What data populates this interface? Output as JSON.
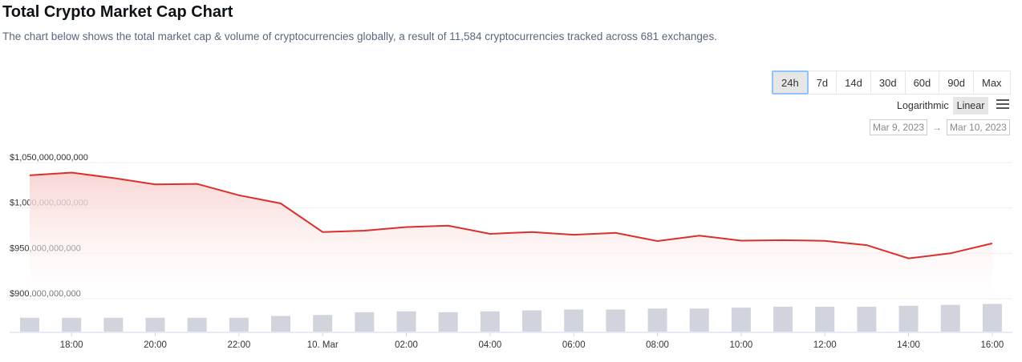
{
  "header": {
    "title": "Total Crypto Market Cap Chart",
    "description": "The chart below shows the total market cap & volume of cryptocurrencies globally, a result of 11,584 cryptocurrencies tracked across 681 exchanges."
  },
  "ranges": [
    "24h",
    "7d",
    "14d",
    "30d",
    "60d",
    "90d",
    "Max"
  ],
  "selected_range": "24h",
  "scale": {
    "log_label": "Logarithmic",
    "linear_label": "Linear",
    "selected": "Linear"
  },
  "date_range": {
    "from": "Mar 9, 2023",
    "arrow": "→",
    "to": "Mar 10, 2023"
  },
  "icons": {
    "menu": "hamburger-menu-icon"
  },
  "colors": {
    "line": "#d9302c",
    "area_top": "#f8d3d1",
    "volume_bar": "#d1d4dc"
  },
  "chart_data": {
    "type": "area",
    "ylim": [
      900000000000,
      1050000000000
    ],
    "yticks": [
      1050000000000,
      1000000000000,
      950000000000,
      900000000000
    ],
    "ytick_labels": [
      "$1,050,000,000,000",
      "$1,000,000,000,000",
      "$950,000,000,000",
      "$900,000,000,000"
    ],
    "x_labels": [
      "18:00",
      "20:00",
      "22:00",
      "10. Mar",
      "02:00",
      "04:00",
      "06:00",
      "08:00",
      "10:00",
      "12:00",
      "14:00",
      "16:00"
    ],
    "x_label_hours": [
      1,
      3,
      5,
      7,
      9,
      11,
      13,
      15,
      17,
      19,
      21,
      23
    ],
    "x_hours": [
      0,
      1,
      2,
      3,
      4,
      5,
      6,
      7,
      8,
      9,
      10,
      11,
      12,
      13,
      14,
      15,
      16,
      17,
      18,
      19,
      20,
      21,
      22,
      23
    ],
    "series": [
      {
        "values": [
          1036000000000,
          1039000000000,
          1033000000000,
          1026000000000,
          1026500000000,
          1014000000000,
          1005000000000,
          973500000000,
          975000000000,
          979000000000,
          980500000000,
          971500000000,
          973500000000,
          970500000000,
          972500000000,
          963500000000,
          969500000000,
          964000000000,
          964500000000,
          963800000000,
          959000000000,
          944500000000,
          950000000000,
          961000000000
        ]
      }
    ],
    "volume": [
      15,
      15,
      15,
      15,
      15,
      15,
      17,
      18,
      21,
      22,
      21,
      22,
      23,
      24,
      24,
      25,
      25,
      26,
      27,
      27,
      27,
      28,
      29,
      30
    ],
    "grid": true,
    "legend": "none"
  }
}
